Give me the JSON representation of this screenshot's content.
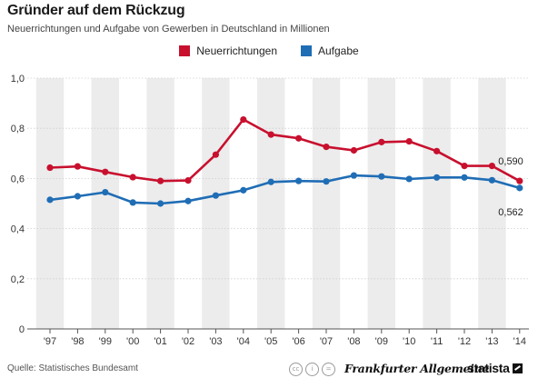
{
  "title": "Gründer auf dem Rückzug",
  "subtitle": "Neuerrichtungen und Aufgabe von Gewerben in Deutschland in Millionen",
  "footer": {
    "source": "Quelle: Statistisches Bundesamt",
    "publisher": "Frankfurter Allgemeine",
    "brand": "statista"
  },
  "chart_data": {
    "type": "line",
    "title": "Gründer auf dem Rückzug",
    "categories": [
      "'97",
      "'98",
      "'99",
      "'00",
      "'01",
      "'02",
      "'03",
      "'04",
      "'05",
      "'06",
      "'07",
      "'08",
      "'09",
      "'10",
      "'11",
      "'12",
      "'13",
      "'14"
    ],
    "series": [
      {
        "name": "Neuerrichtungen",
        "color": "#c8102e",
        "values": [
          0.643,
          0.648,
          0.626,
          0.605,
          0.59,
          0.592,
          0.695,
          0.835,
          0.775,
          0.76,
          0.726,
          0.712,
          0.745,
          0.748,
          0.709,
          0.65,
          0.65,
          0.59
        ]
      },
      {
        "name": "Aufgabe",
        "color": "#1f6db5",
        "values": [
          0.515,
          0.529,
          0.545,
          0.504,
          0.5,
          0.51,
          0.532,
          0.553,
          0.586,
          0.59,
          0.588,
          0.612,
          0.608,
          0.598,
          0.604,
          0.604,
          0.593,
          0.562
        ]
      }
    ],
    "end_labels": [
      "0,590",
      "0,562"
    ],
    "yticks": [
      "0",
      "0,2",
      "0,4",
      "0,6",
      "0,8",
      "1,0"
    ],
    "ylim": [
      0,
      1.0
    ],
    "grid": true,
    "legend_position": "top-center"
  }
}
